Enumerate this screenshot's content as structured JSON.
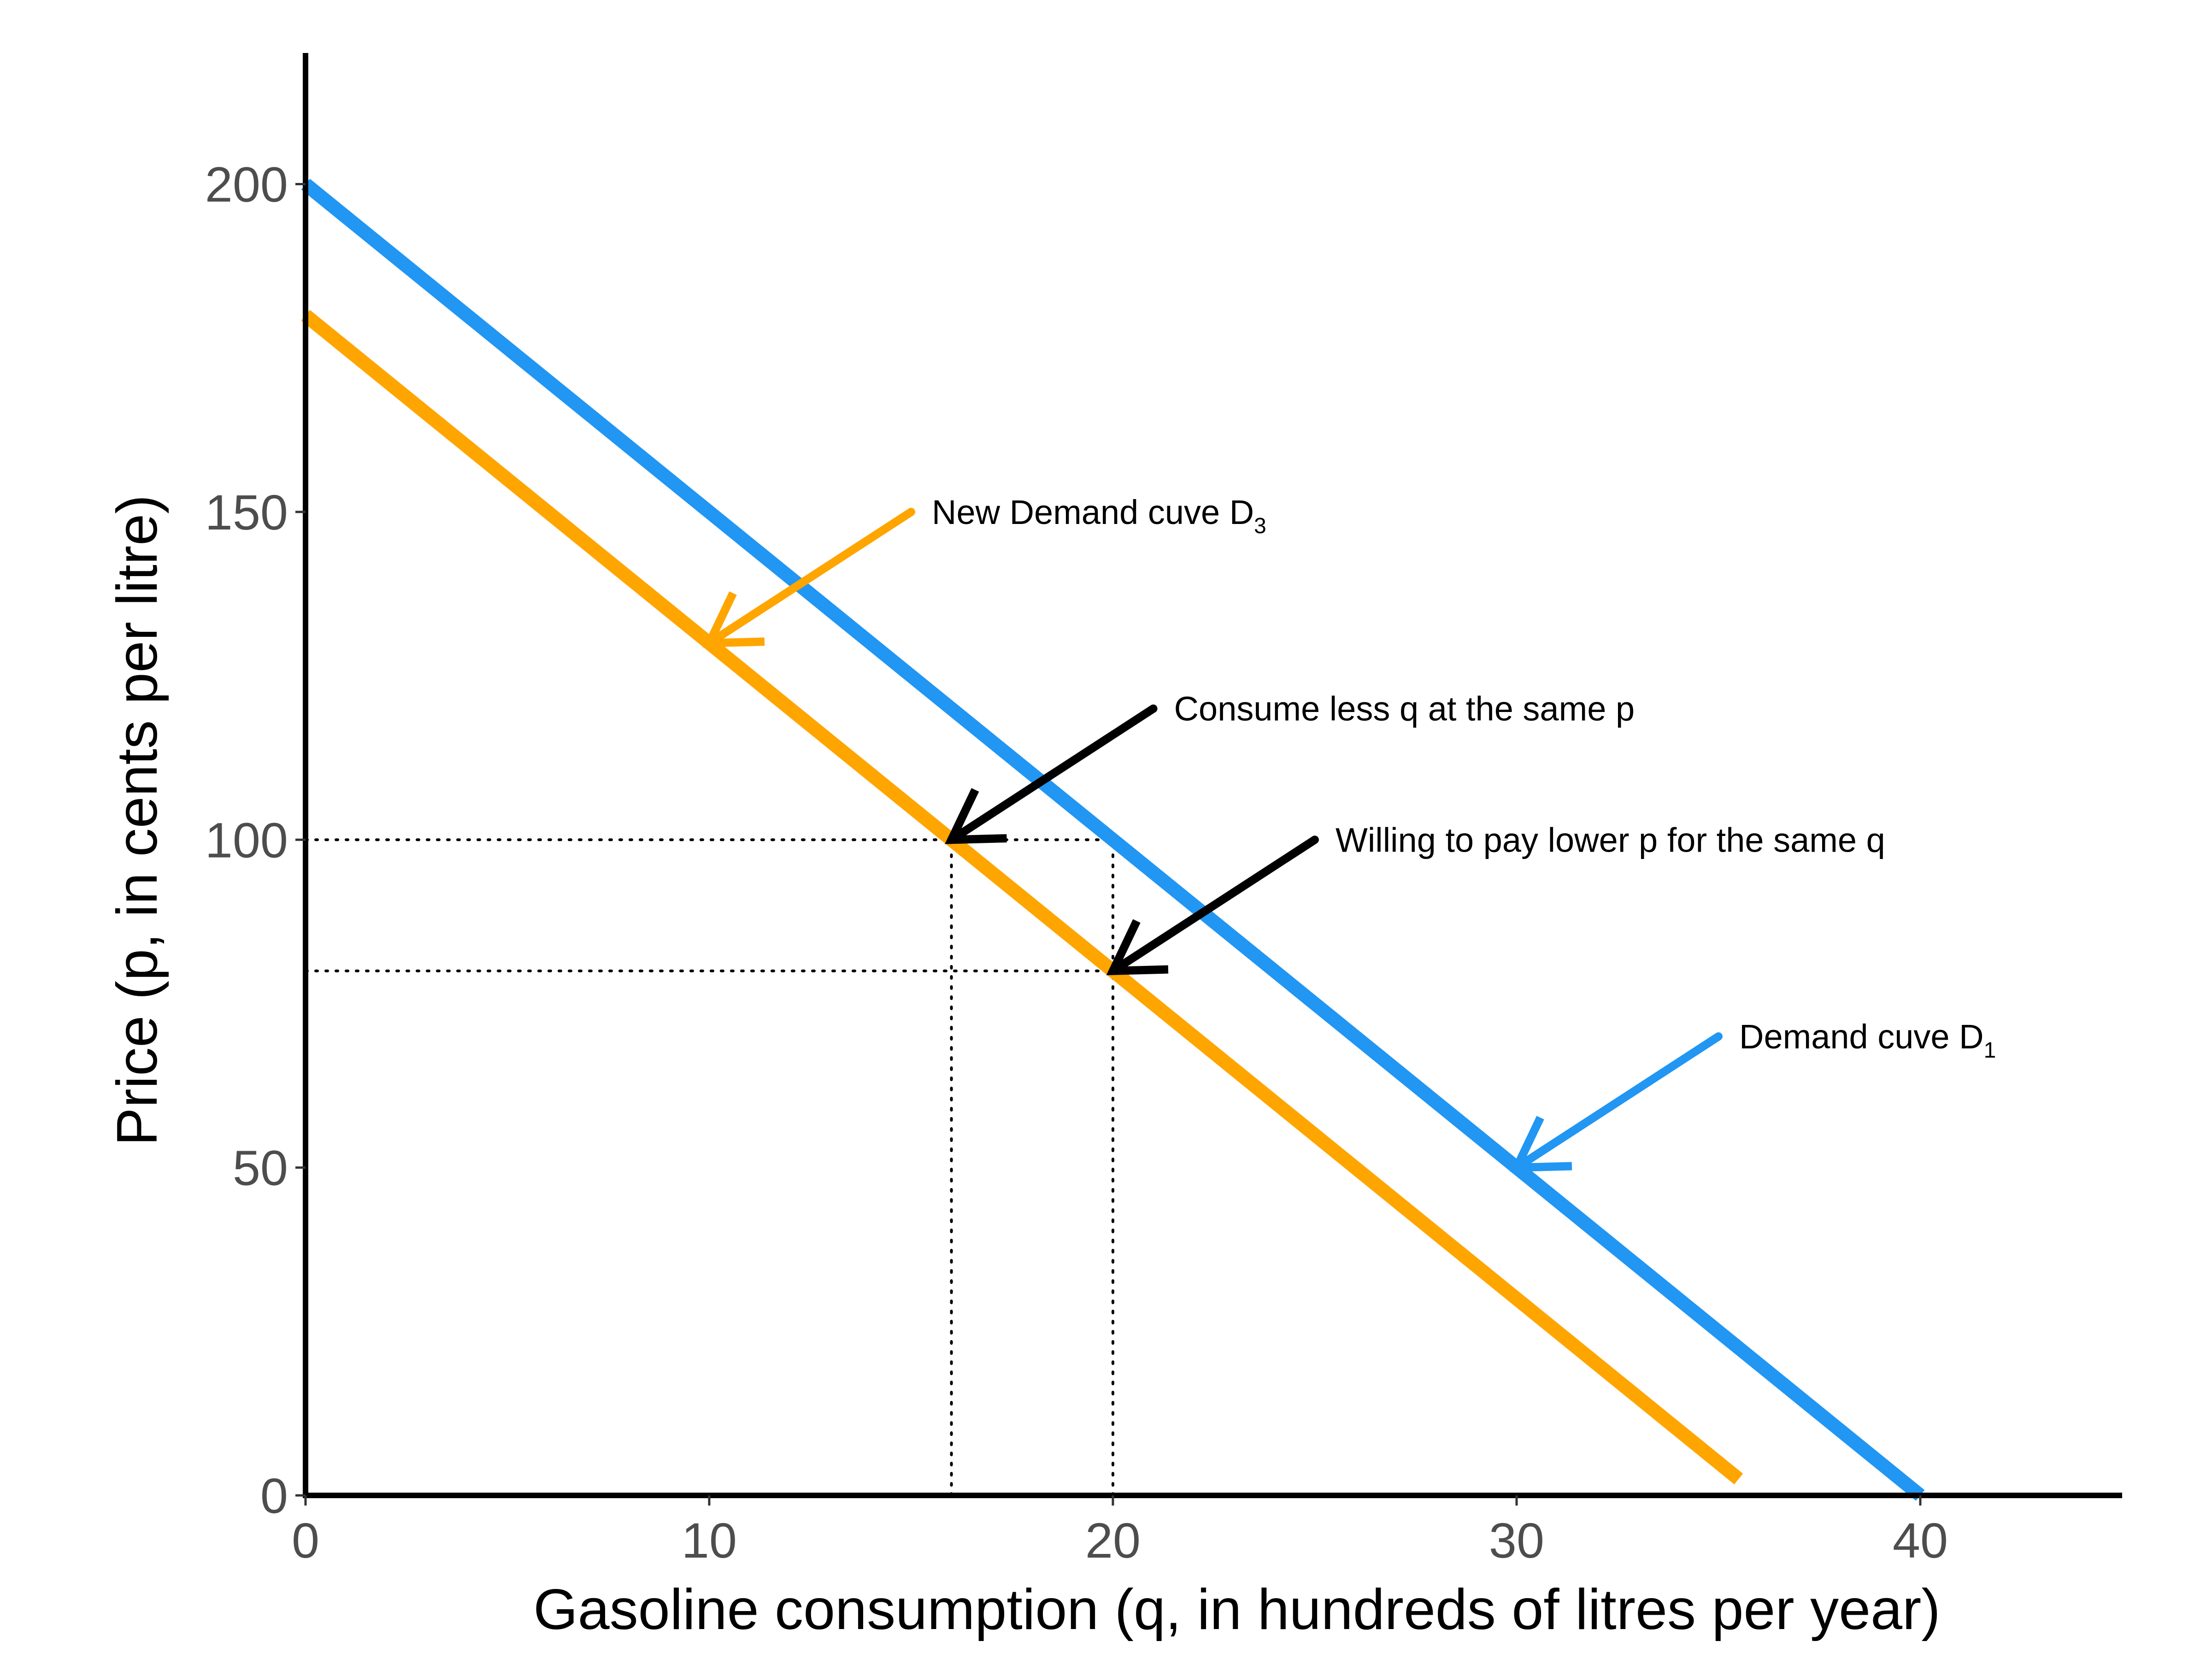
{
  "chart_data": {
    "type": "line",
    "xlabel": "Gasoline consumption (q, in hundreds of litres per year)",
    "ylabel": "Price (p, in cents per litre)",
    "xlim": [
      0,
      45
    ],
    "ylim": [
      0,
      220
    ],
    "xticks": [
      0,
      10,
      20,
      30,
      40
    ],
    "yticks": [
      0,
      50,
      100,
      150,
      200
    ],
    "grid": false,
    "series": [
      {
        "key": "d1",
        "color": "#2196F3",
        "x": [
          0,
          40
        ],
        "y": [
          200,
          0
        ]
      },
      {
        "key": "d3",
        "color": "#FFA500",
        "x": [
          0,
          35.5
        ],
        "y": [
          180,
          2.5
        ]
      }
    ],
    "guides": [
      {
        "orientation": "horizontal",
        "y": 100,
        "x_to": 20
      },
      {
        "orientation": "horizontal",
        "y": 80,
        "x_to": 20
      },
      {
        "orientation": "vertical",
        "x": 16,
        "y_to": 100
      },
      {
        "orientation": "vertical",
        "x": 20,
        "y_to": 100
      }
    ],
    "annotations": [
      {
        "text": "New Demand cuve D",
        "sub": "3",
        "color": "#FFA500",
        "tail": [
          15,
          150
        ],
        "head": [
          10,
          130
        ]
      },
      {
        "text": "Consume less q at the same p",
        "sub": "",
        "color": "#000000",
        "tail": [
          21,
          120
        ],
        "head": [
          16,
          100
        ]
      },
      {
        "text": "Willing to pay lower p for the same q",
        "sub": "",
        "color": "#000000",
        "tail": [
          25,
          100
        ],
        "head": [
          20,
          80
        ]
      },
      {
        "text": "Demand cuve D",
        "sub": "1",
        "color": "#2196F3",
        "tail": [
          35,
          70
        ],
        "head": [
          30,
          50
        ]
      }
    ]
  }
}
